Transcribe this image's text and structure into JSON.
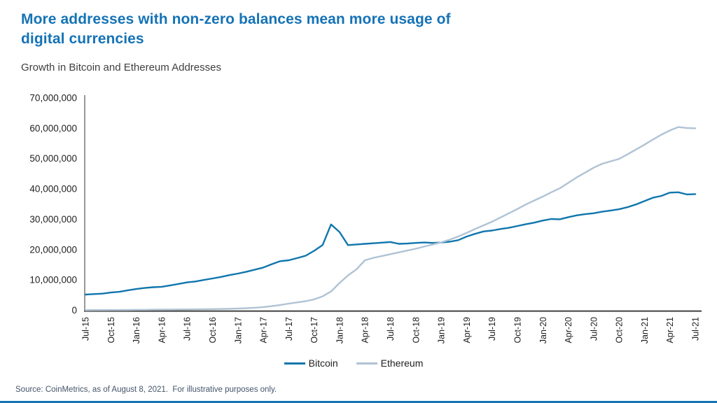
{
  "header": {
    "title_line1": "More addresses with non-zero balances mean more usage of",
    "title_line2": "digital currencies",
    "subtitle": "Growth in Bitcoin and Ethereum Addresses"
  },
  "footer": {
    "source": "Source: CoinMetrics, as of August 8, 2021.  For illustrative purposes only."
  },
  "colors": {
    "title": "#1573b6",
    "subtitle_text": "#3f3f3f",
    "bitcoin": "#1076ad",
    "ethereum": "#b0c3d4",
    "axis_x": "#404040",
    "axis_y": "#7f7f7f",
    "tick_text": "#1f1f1f",
    "source_text": "#44546a",
    "footer_rule": "#1573b6"
  },
  "chart_data": {
    "type": "line",
    "title": "Growth in Bitcoin and Ethereum Addresses",
    "xlabel": "",
    "ylabel": "",
    "x_unit": "monthly, Jul-2015 through Jul-2021",
    "months": 73,
    "ylim": [
      0,
      70000000
    ],
    "grid": false,
    "legend_position": "bottom",
    "y_tick_labels": [
      "0",
      "10,000,000",
      "20,000,000",
      "30,000,000",
      "40,000,000",
      "50,000,000",
      "60,000,000",
      "70,000,000"
    ],
    "x_tick_labels": [
      "Jul-15",
      "Oct-15",
      "Jan-16",
      "Apr-16",
      "Jul-16",
      "Oct-16",
      "Jan-17",
      "Apr-17",
      "Jul-17",
      "Oct-17",
      "Jan-18",
      "Apr-18",
      "Jul-18",
      "Oct-18",
      "Jan-19",
      "Apr-19",
      "Jul-19",
      "Oct-19",
      "Jan-20",
      "Apr-20",
      "Jul-20",
      "Oct-20",
      "Jan-21",
      "Apr-21",
      "Jul-21"
    ],
    "x_tick_every_n_months": 3,
    "series": [
      {
        "name": "Bitcoin",
        "color": "#1076ad",
        "values_millions": [
          5.2,
          5.35,
          5.5,
          5.85,
          6.1,
          6.6,
          7.0,
          7.35,
          7.6,
          7.75,
          8.2,
          8.7,
          9.2,
          9.5,
          10.0,
          10.5,
          11.0,
          11.6,
          12.1,
          12.7,
          13.4,
          14.1,
          15.2,
          16.2,
          16.5,
          17.2,
          18.0,
          19.6,
          21.5,
          28.3,
          25.8,
          21.5,
          21.7,
          21.9,
          22.1,
          22.3,
          22.5,
          21.9,
          22.0,
          22.2,
          22.35,
          22.2,
          22.35,
          22.6,
          23.1,
          24.3,
          25.2,
          26.0,
          26.3,
          26.8,
          27.2,
          27.8,
          28.4,
          28.9,
          29.6,
          30.1,
          30.0,
          30.7,
          31.3,
          31.7,
          32.0,
          32.5,
          32.9,
          33.3,
          34.0,
          34.9,
          36.0,
          37.1,
          37.7,
          38.8,
          38.9,
          38.2,
          38.3
        ]
      },
      {
        "name": "Ethereum",
        "color": "#b0c3d4",
        "values_millions": [
          0.05,
          0.06,
          0.07,
          0.09,
          0.1,
          0.12,
          0.15,
          0.17,
          0.2,
          0.22,
          0.25,
          0.28,
          0.3,
          0.33,
          0.36,
          0.4,
          0.44,
          0.5,
          0.6,
          0.7,
          0.85,
          1.05,
          1.35,
          1.75,
          2.2,
          2.6,
          3.0,
          3.6,
          4.6,
          6.2,
          9.0,
          11.5,
          13.5,
          16.5,
          17.3,
          17.9,
          18.5,
          19.1,
          19.7,
          20.3,
          21.0,
          21.7,
          22.4,
          23.3,
          24.3,
          25.5,
          26.8,
          28.0,
          29.2,
          30.6,
          32.0,
          33.4,
          34.9,
          36.2,
          37.5,
          38.9,
          40.2,
          42.0,
          43.8,
          45.4,
          47.0,
          48.3,
          49.1,
          49.9,
          51.4,
          53.0,
          54.6,
          56.3,
          57.9,
          59.3,
          60.4,
          60.1,
          60.0
        ]
      }
    ]
  }
}
